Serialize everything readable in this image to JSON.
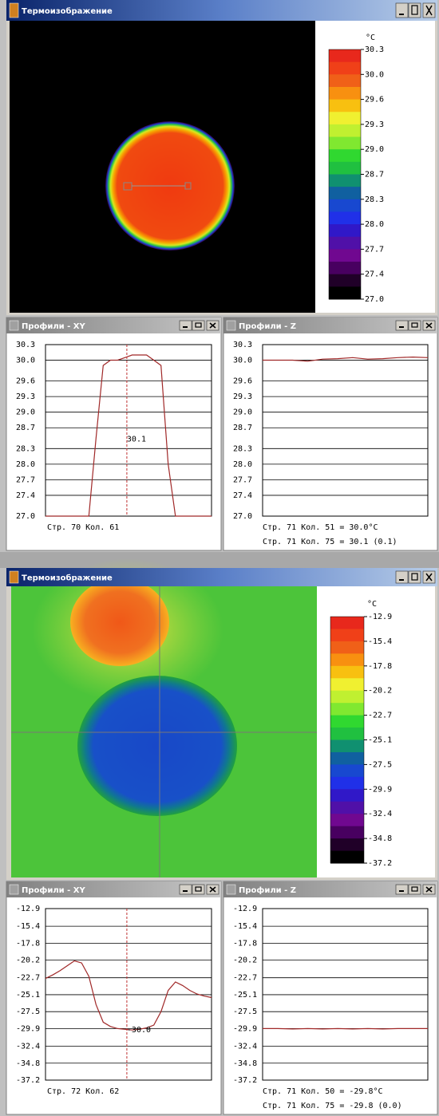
{
  "thermal_windows": [
    {
      "title": "Термоизображение",
      "unit": "°C",
      "scale": [
        "30.3",
        "30.0",
        "29.6",
        "29.3",
        "29.0",
        "28.7",
        "28.3",
        "28.0",
        "27.7",
        "27.4",
        "27.0"
      ]
    },
    {
      "title": "Термоизображение",
      "unit": "°C",
      "scale": [
        "-12.9",
        "-15.4",
        "-17.8",
        "-20.2",
        "-22.7",
        "-25.1",
        "-27.5",
        "-29.9",
        "-32.4",
        "-34.8",
        "-37.2"
      ]
    }
  ],
  "profiles": [
    {
      "title": "Профили - XY",
      "ylim": [
        27.0,
        30.3
      ],
      "yticks": [
        30.3,
        {
          "value": 30,
          "label": "30.0"
        },
        29.6,
        29.3,
        {
          "value": 29,
          "label": "29.0"
        },
        28.7,
        28.3,
        {
          "value": 28,
          "label": "28.0"
        },
        27.7,
        27.4,
        {
          "value": 27,
          "label": "27.0"
        }
      ],
      "values": [
        27.0,
        27.0,
        27.0,
        27.0,
        27.0,
        27.0,
        27.0,
        28.5,
        29.9,
        30.0,
        30.0,
        30.05,
        30.1,
        30.1,
        30.1,
        30.0,
        29.9,
        28.0,
        27.0,
        27.0,
        27.0,
        27.0,
        27.0,
        27.0
      ],
      "cursor_label": "30.1",
      "status": [
        "Стр.  70 Кол.  61"
      ]
    },
    {
      "title": "Профили - Z",
      "ylim": [
        27.0,
        30.3
      ],
      "yticks": [
        30.3,
        {
          "value": 30,
          "label": "30.0"
        },
        29.6,
        29.3,
        {
          "value": 29,
          "label": "29.0"
        },
        28.7,
        28.3,
        {
          "value": 28,
          "label": "28.0"
        },
        27.7,
        27.4,
        {
          "value": 27,
          "label": "27.0"
        }
      ],
      "values": [
        30.0,
        30.0,
        30.0,
        29.98,
        30.02,
        30.03,
        30.05,
        30.02,
        30.03,
        30.05,
        30.06,
        30.05
      ],
      "status": [
        "Стр. 71 Кол. 51 =  30.0°C",
        "Стр. 71 Кол. 75 =  30.1 (0.1)"
      ]
    },
    {
      "title": "Профили - XY",
      "ylim": [
        -37.2,
        -12.9
      ],
      "yticks": [
        -12.9,
        -15.4,
        -17.8,
        -20.2,
        -22.7,
        -25.1,
        -27.5,
        -29.9,
        -32.4,
        -34.8,
        -37.2
      ],
      "values": [
        -22.8,
        -22.3,
        -21.7,
        -21.0,
        -20.3,
        -20.6,
        -22.5,
        -26.5,
        -29.0,
        -29.6,
        -29.9,
        -30.0,
        -30.1,
        -30.0,
        -29.8,
        -29.4,
        -27.5,
        -24.5,
        -23.3,
        -23.8,
        -24.5,
        -25.0,
        -25.3,
        -25.5
      ],
      "cursor_label": "-30.0",
      "status": [
        "Стр.  72 Кол.  62"
      ]
    },
    {
      "title": "Профили - Z",
      "ylim": [
        -37.2,
        -12.9
      ],
      "yticks": [
        -12.9,
        -15.4,
        -17.8,
        -20.2,
        -22.7,
        -25.1,
        -27.5,
        -29.9,
        -32.4,
        -34.8,
        -37.2
      ],
      "values": [
        -29.9,
        -29.9,
        -29.95,
        -29.9,
        -29.95,
        -29.9,
        -29.95,
        -29.9,
        -29.95,
        -29.9,
        -29.9,
        -29.9
      ],
      "status": [
        "Стр. 71 Кол. 50 = -29.8°C",
        "Стр. 71 Кол. 75 = -29.8 (0.0)"
      ]
    }
  ]
}
